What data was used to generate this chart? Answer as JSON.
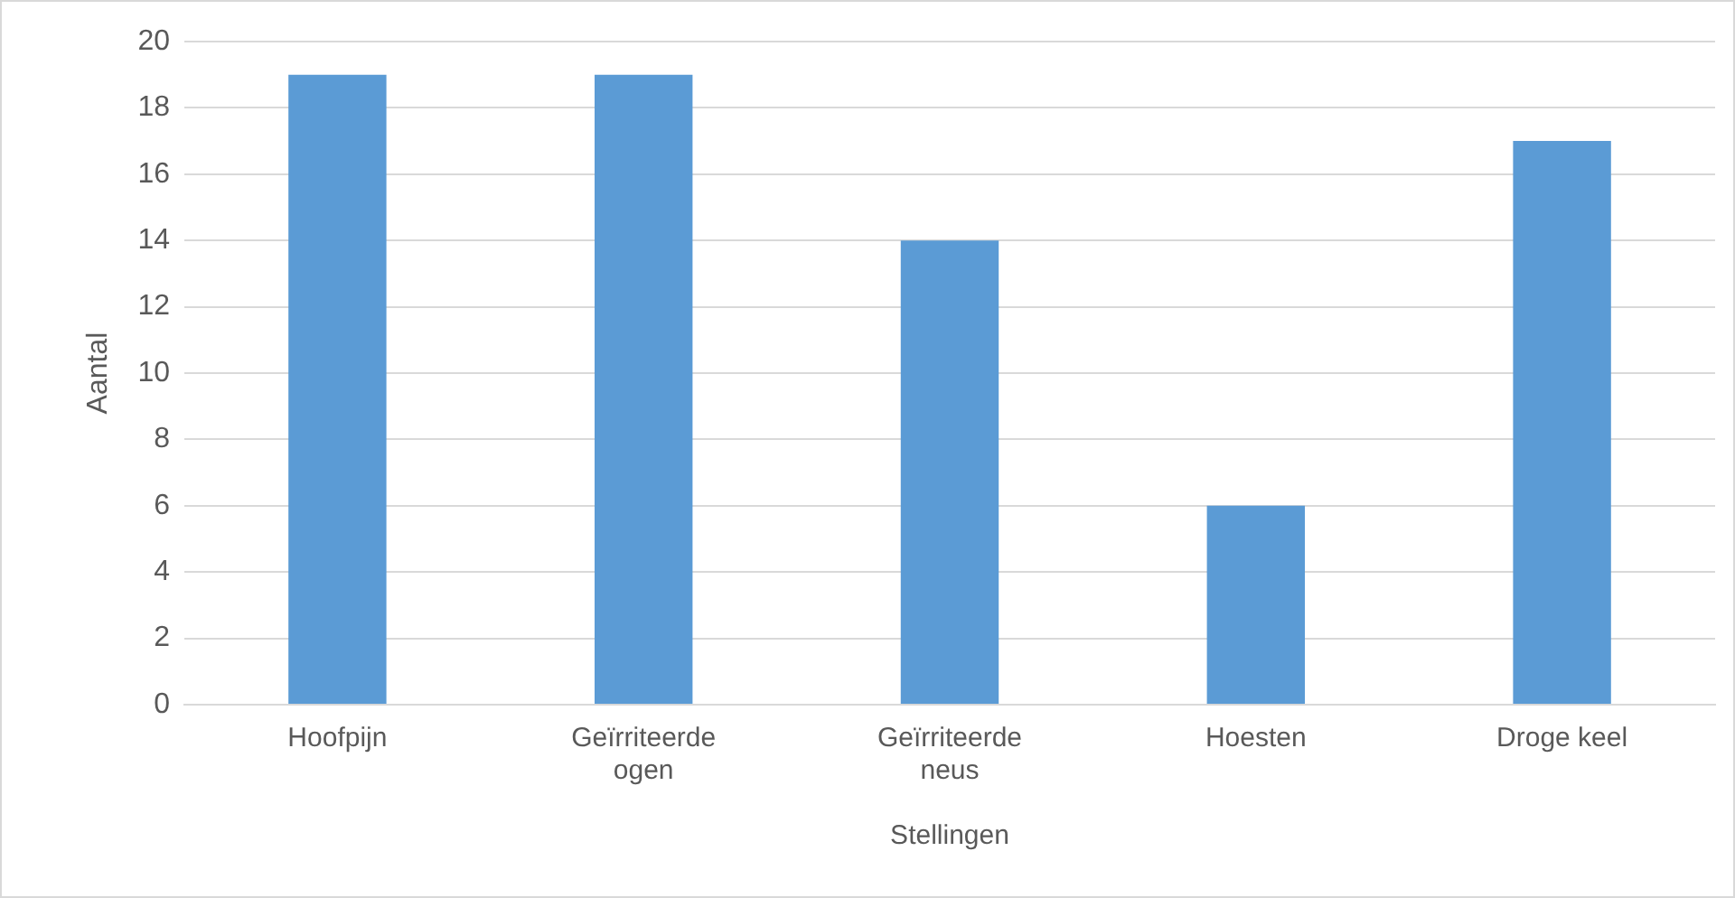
{
  "chart_data": {
    "type": "bar",
    "xlabel": "Stellingen",
    "ylabel": "Aantal",
    "categories": [
      "Hoofpijn",
      "Geïrriteerde ogen",
      "Geïrriteerde neus",
      "Hoesten",
      "Droge keel"
    ],
    "values": [
      19,
      19,
      14,
      6,
      17
    ],
    "color": "#5b9bd5",
    "ylim": [
      0,
      20
    ],
    "yticks": [
      0,
      2,
      4,
      6,
      8,
      10,
      12,
      14,
      16,
      18,
      20
    ],
    "grid": "y",
    "legend": false
  }
}
